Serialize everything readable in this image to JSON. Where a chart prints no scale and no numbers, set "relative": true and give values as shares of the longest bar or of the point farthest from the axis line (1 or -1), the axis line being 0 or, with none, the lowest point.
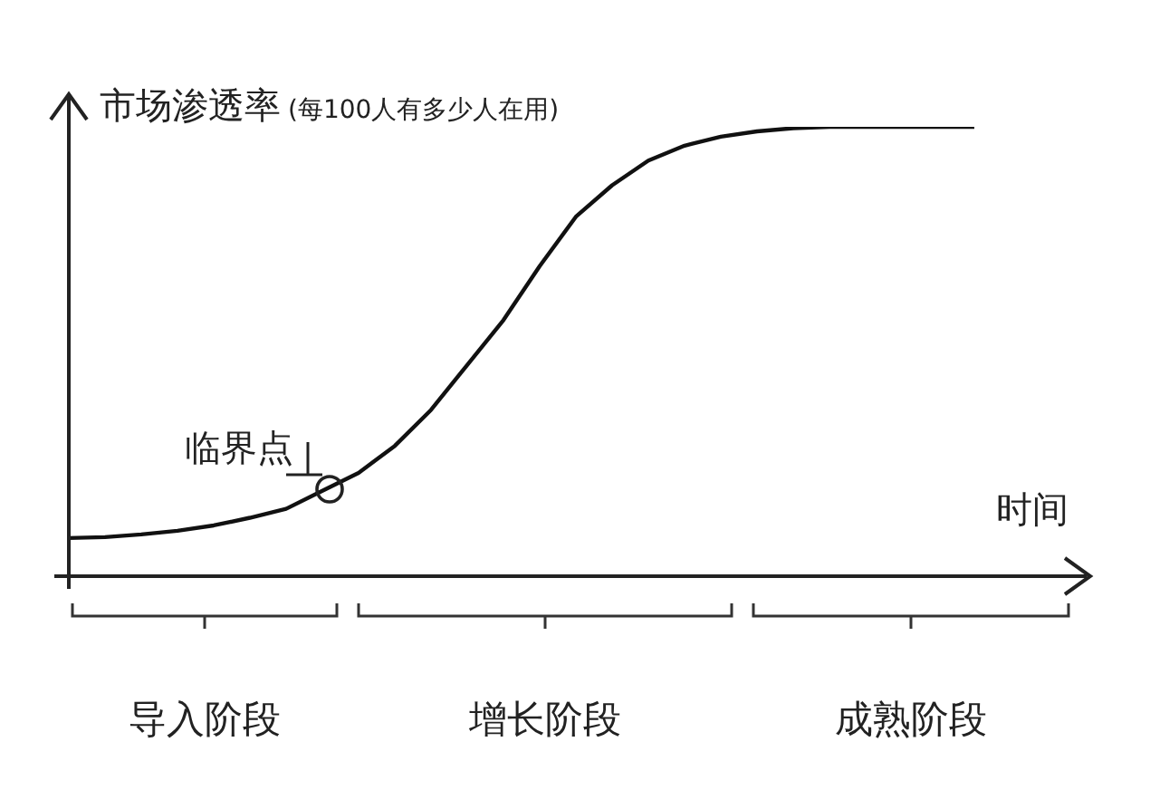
{
  "chart_data": {
    "type": "line",
    "relative": true,
    "xlabel": "时间",
    "ylabel": "市场渗透率(每100人有多少人在用)",
    "categories": [
      null,
      null,
      null,
      null,
      null,
      null,
      null,
      null,
      null,
      null,
      null,
      null,
      null,
      null,
      null,
      null,
      null,
      null,
      null,
      null,
      null,
      null,
      null,
      null,
      null,
      null
    ],
    "series": [
      {
        "color": "#111111",
        "values": [
          0.085,
          0.087,
          0.093,
          0.101,
          0.113,
          0.13,
          0.15,
          0.19,
          0.23,
          0.29,
          0.37,
          0.47,
          0.57,
          0.69,
          0.8,
          0.87,
          0.925,
          0.958,
          0.978,
          0.99,
          0.997,
          1,
          1,
          1,
          1,
          1
        ]
      }
    ],
    "annotations": [
      "导入阶段",
      "增长阶段",
      "成熟阶段",
      "临界点"
    ],
    "marker": "none",
    "grid": false,
    "legend": false
  }
}
